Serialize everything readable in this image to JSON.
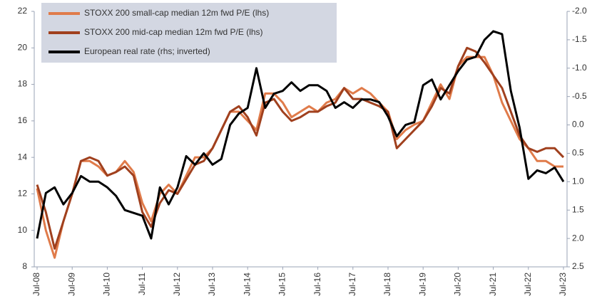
{
  "chart_data": {
    "type": "line",
    "categories": [
      "Jul-08",
      null,
      null,
      null,
      "Jul-09",
      null,
      null,
      null,
      "Jul-10",
      null,
      null,
      null,
      "Jul-11",
      null,
      null,
      null,
      "Jul-12",
      null,
      null,
      null,
      "Jul-13",
      null,
      null,
      null,
      "Jul-14",
      null,
      null,
      null,
      "Jul-15",
      null,
      null,
      null,
      "Jul-16",
      null,
      null,
      null,
      "Jul-17",
      null,
      null,
      null,
      "Jul-18",
      null,
      null,
      null,
      "Jul-19",
      null,
      null,
      null,
      "Jul-20",
      null,
      null,
      null,
      "Jul-21",
      null,
      null,
      null,
      "Jul-22",
      null,
      null,
      null,
      "Jul-23"
    ],
    "series": [
      {
        "name": "STOXX 200 small-cap median 12m fwd P/E (lhs)",
        "color": "#e07b4a",
        "values": [
          12.3,
          10,
          8.5,
          10.5,
          12,
          13.8,
          13.8,
          13.5,
          13,
          13.2,
          13.8,
          13.2,
          11.5,
          10.5,
          12,
          12.5,
          12,
          13,
          14,
          14,
          14.5,
          15.5,
          16.5,
          16.5,
          16,
          15.5,
          17.5,
          17.5,
          17,
          16.2,
          16.5,
          16.8,
          16.5,
          17,
          17.2,
          17.8,
          17.5,
          17.8,
          17.5,
          17,
          16.5,
          15,
          15.5,
          15.8,
          16,
          17,
          18,
          17.2,
          19,
          19.5,
          19.5,
          19.5,
          18.5,
          17,
          16,
          15,
          14.5,
          13.8,
          13.8,
          13.5,
          13.5
        ]
      },
      {
        "name": "STOXX 200 mid-cap median 12m fwd P/E (lhs)",
        "color": "#a0401e",
        "values": [
          12.5,
          11,
          9,
          10.5,
          12,
          13.8,
          14,
          13.8,
          13,
          13.2,
          13.5,
          13,
          11,
          10.2,
          11.5,
          12.2,
          12,
          12.8,
          13.6,
          13.8,
          14.5,
          15.5,
          16.5,
          16.8,
          16.2,
          15.2,
          17,
          17.2,
          16.5,
          16,
          16.2,
          16.5,
          16.5,
          16.8,
          17,
          17.8,
          17.2,
          17.2,
          17,
          16.8,
          16.5,
          14.5,
          15,
          15.5,
          16,
          16.8,
          17.8,
          17.5,
          19,
          20,
          19.8,
          19.2,
          18.5,
          17.8,
          16.5,
          15.2,
          14.5,
          14.3,
          14.5,
          14.5,
          14
        ]
      },
      {
        "name": "European real rate (rhs; inverted)",
        "color": "#000000",
        "axis": "y2",
        "values": [
          2.0,
          1.2,
          1.1,
          1.4,
          1.2,
          0.9,
          1.0,
          1.0,
          1.1,
          1.25,
          1.5,
          1.55,
          1.6,
          2.0,
          1.1,
          1.4,
          1.1,
          0.55,
          0.7,
          0.5,
          0.7,
          0.6,
          0.0,
          -0.2,
          -0.3,
          -1.0,
          -0.3,
          -0.55,
          -0.6,
          -0.75,
          -0.6,
          -0.7,
          -0.7,
          -0.6,
          -0.3,
          -0.4,
          -0.3,
          -0.45,
          -0.45,
          -0.4,
          -0.15,
          0.2,
          0.0,
          -0.05,
          -0.7,
          -0.8,
          -0.45,
          -0.7,
          -0.95,
          -1.15,
          -1.2,
          -1.5,
          -1.65,
          -1.6,
          -0.6,
          0.05,
          0.95,
          0.8,
          0.85,
          0.75,
          1.0
        ]
      }
    ],
    "ylim": [
      8,
      22
    ],
    "yticks": [
      8,
      10,
      12,
      14,
      16,
      18,
      20,
      22
    ],
    "y2lim": [
      -2,
      2.5
    ],
    "y2_inverted": true,
    "y2ticks": [
      {
        "value": -2,
        "label": "-2.0"
      },
      -1.5,
      {
        "value": -1,
        "label": "-1.0"
      },
      -0.5,
      {
        "value": 0,
        "label": "0.0"
      },
      0.5,
      {
        "value": 1,
        "label": "1.0"
      },
      1.5,
      {
        "value": 2,
        "label": "2.0"
      },
      2.5
    ],
    "legend": "upper left"
  }
}
